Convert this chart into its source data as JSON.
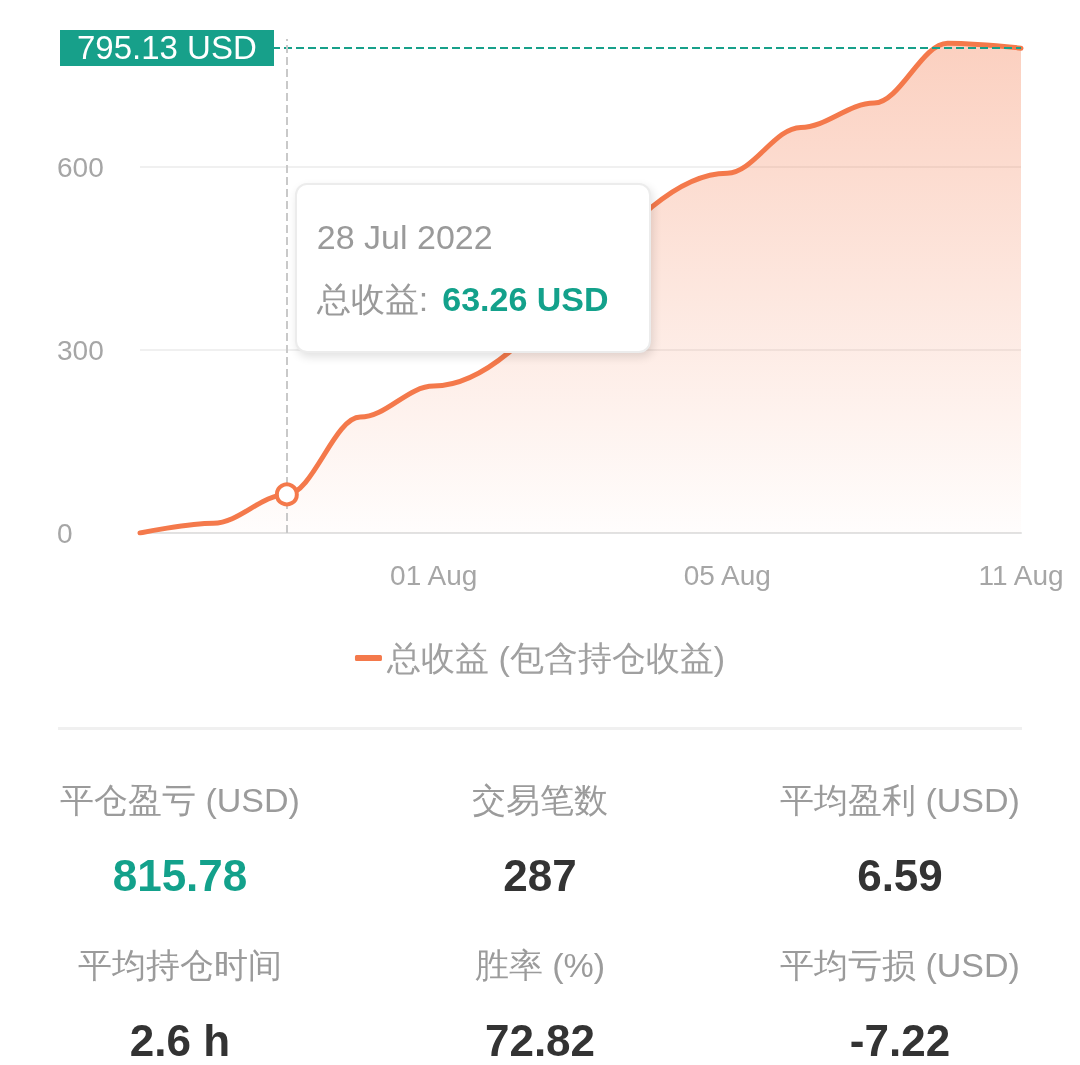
{
  "chart_data": [
    {
      "type": "area",
      "categories": [
        null,
        null,
        null,
        null,
        "01 Aug",
        null,
        null,
        null,
        "05 Aug",
        null,
        null,
        null,
        "11 Aug"
      ],
      "series": [
        {
          "name": "总收益 (包含持仓收益)",
          "color": "#f4794b",
          "values": [
            0,
            16,
            63.26,
            190,
            241,
            null,
            null,
            null,
            590,
            665,
            705,
            803,
            795
          ]
        },
        {
          "type": "scatter",
          "color": "#ffffff",
          "marker": "circle",
          "values": [
            null,
            null,
            63.26,
            null,
            null,
            null,
            null,
            null,
            null,
            null,
            null,
            null,
            null
          ]
        }
      ],
      "ylim": [
        0,
        810
      ],
      "yticks": [
        0,
        300,
        600
      ],
      "grid": "y",
      "legend": "bottom",
      "marker": "none",
      "ref_lines": [
        {
          "axis": "y",
          "value": 795.13,
          "label": "795.13 USD",
          "color": "#17a08a",
          "line_style": "dashed"
        }
      ],
      "annotations": [
        "28 Jul 2022",
        "总收益: 63.26 USD"
      ]
    },
    {
      "type": "other",
      "categories": [
        "平仓盈亏 (USD)",
        "交易笔数",
        "平均盈利 (USD)",
        "平均持仓时间",
        "胜率 (%)",
        "平均亏损 (USD)"
      ],
      "value_labels": [
        "815.78",
        "287",
        "6.59",
        "2.6 h",
        "72.82",
        "-7.22"
      ],
      "colors": [
        "#13a18b",
        "#333333",
        "#333333",
        "#333333",
        "#333333",
        "#333333"
      ]
    }
  ]
}
